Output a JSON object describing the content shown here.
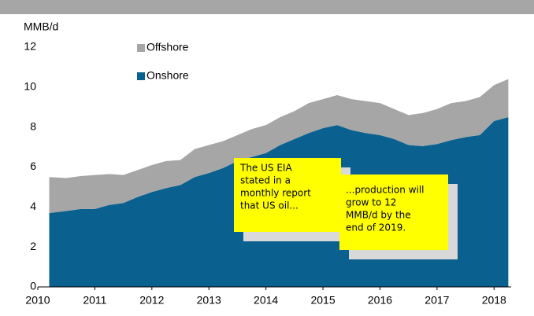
{
  "chart_data": {
    "type": "stacked-area",
    "y_label": "MMB/d",
    "x": [
      2010.2,
      2010.5,
      2010.75,
      2011.0,
      2011.25,
      2011.5,
      2011.75,
      2012.0,
      2012.25,
      2012.5,
      2012.75,
      2013.0,
      2013.25,
      2013.5,
      2013.75,
      2014.0,
      2014.25,
      2014.5,
      2014.75,
      2015.0,
      2015.25,
      2015.5,
      2015.75,
      2016.0,
      2016.25,
      2016.5,
      2016.75,
      2017.0,
      2017.25,
      2017.5,
      2017.75,
      2018.0,
      2018.25
    ],
    "series": [
      {
        "name": "Onshore",
        "color": "#0a6190",
        "values": [
          3.7,
          3.8,
          3.9,
          3.9,
          4.1,
          4.2,
          4.5,
          4.75,
          4.95,
          5.1,
          5.5,
          5.7,
          5.95,
          6.3,
          6.5,
          6.7,
          7.1,
          7.4,
          7.7,
          7.95,
          8.1,
          7.85,
          7.7,
          7.6,
          7.4,
          7.1,
          7.05,
          7.15,
          7.35,
          7.5,
          7.6,
          8.3,
          8.5
        ]
      },
      {
        "name": "Offshore",
        "color": "#a6a6a6",
        "values": [
          1.8,
          1.65,
          1.65,
          1.7,
          1.55,
          1.4,
          1.35,
          1.35,
          1.35,
          1.25,
          1.4,
          1.4,
          1.35,
          1.3,
          1.4,
          1.4,
          1.4,
          1.4,
          1.5,
          1.45,
          1.5,
          1.55,
          1.6,
          1.6,
          1.5,
          1.5,
          1.65,
          1.75,
          1.85,
          1.8,
          1.9,
          1.8,
          1.9
        ]
      }
    ],
    "xlim": [
      2010,
      2018.3
    ],
    "xticks": [
      2010,
      2011,
      2012,
      2013,
      2014,
      2015,
      2016,
      2017,
      2018
    ],
    "ylim": [
      0,
      12
    ],
    "yticks": [
      0,
      2,
      4,
      6,
      8,
      10,
      12
    ],
    "grid": false,
    "legend": "top-left",
    "annotations": [
      {
        "lines": [
          "The US EIA",
          "stated in a",
          "monthly report",
          "that US oil..."
        ]
      },
      {
        "lines": [
          "...production will",
          "grow to 12",
          "MMB/d by the",
          "end of 2019."
        ]
      }
    ]
  }
}
